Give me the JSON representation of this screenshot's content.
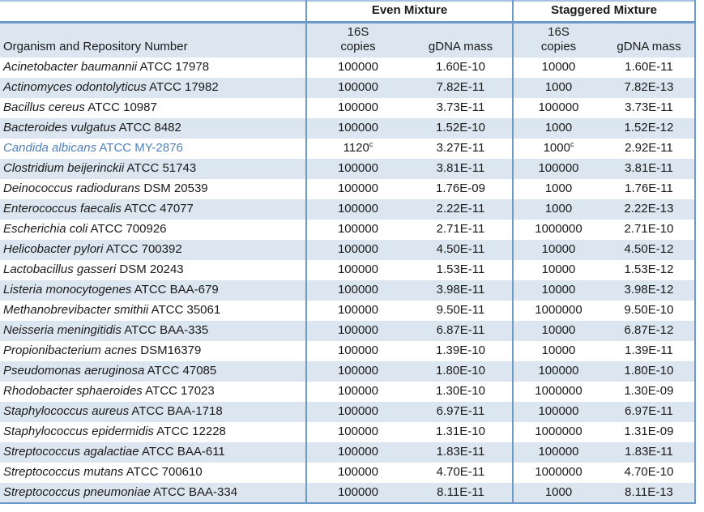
{
  "colors": {
    "band": "#dce6f1",
    "border_strong": "#6d9ac9",
    "border_light": "#a6c3e1",
    "highlight_text": "#4f81bd"
  },
  "table": {
    "group_headers": {
      "even": "Even Mixture",
      "staggered": "Staggered Mixture"
    },
    "sub_headers": {
      "organism": "Organism and Repository Number",
      "copies_line1": "16S",
      "copies_line2": "copies",
      "gdna": "gDNA mass"
    },
    "rows": [
      {
        "species": "Acinetobacter baumannii",
        "strain": "ATCC 17978",
        "even_copies": "100000",
        "even_sup": "",
        "even_gdna": "1.60E-10",
        "stag_copies": "10000",
        "stag_sup": "",
        "stag_gdna": "1.60E-11",
        "highlight": false
      },
      {
        "species": "Actinomyces odontolyticus",
        "strain": "ATCC 17982",
        "even_copies": "100000",
        "even_sup": "",
        "even_gdna": "7.82E-11",
        "stag_copies": "1000",
        "stag_sup": "",
        "stag_gdna": "7.82E-13",
        "highlight": false
      },
      {
        "species": "Bacillus cereus",
        "strain": "ATCC 10987",
        "even_copies": "100000",
        "even_sup": "",
        "even_gdna": "3.73E-11",
        "stag_copies": "100000",
        "stag_sup": "",
        "stag_gdna": "3.73E-11",
        "highlight": false
      },
      {
        "species": "Bacteroides vulgatus",
        "strain": "ATCC 8482",
        "even_copies": "100000",
        "even_sup": "",
        "even_gdna": "1.52E-10",
        "stag_copies": "1000",
        "stag_sup": "",
        "stag_gdna": "1.52E-12",
        "highlight": false
      },
      {
        "species": "Candida albicans",
        "strain": "ATCC MY-2876",
        "even_copies": "1120",
        "even_sup": "c",
        "even_gdna": "3.27E-11",
        "stag_copies": "1000",
        "stag_sup": "c",
        "stag_gdna": "2.92E-11",
        "highlight": true
      },
      {
        "species": "Clostridium beijerinckii",
        "strain": "ATCC 51743",
        "even_copies": "100000",
        "even_sup": "",
        "even_gdna": "3.81E-11",
        "stag_copies": "100000",
        "stag_sup": "",
        "stag_gdna": "3.81E-11",
        "highlight": false
      },
      {
        "species": "Deinococcus radiodurans",
        "strain": "DSM 20539",
        "even_copies": "100000",
        "even_sup": "",
        "even_gdna": "1.76E-09",
        "stag_copies": "1000",
        "stag_sup": "",
        "stag_gdna": "1.76E-11",
        "highlight": false
      },
      {
        "species": "Enterococcus faecalis",
        "strain": "ATCC 47077",
        "even_copies": "100000",
        "even_sup": "",
        "even_gdna": "2.22E-11",
        "stag_copies": "1000",
        "stag_sup": "",
        "stag_gdna": "2.22E-13",
        "highlight": false
      },
      {
        "species": "Escherichia coli",
        "strain": "ATCC 700926",
        "even_copies": "100000",
        "even_sup": "",
        "even_gdna": "2.71E-11",
        "stag_copies": "1000000",
        "stag_sup": "",
        "stag_gdna": "2.71E-10",
        "highlight": false
      },
      {
        "species": "Helicobacter pylori",
        "strain": "ATCC 700392",
        "even_copies": "100000",
        "even_sup": "",
        "even_gdna": "4.50E-11",
        "stag_copies": "10000",
        "stag_sup": "",
        "stag_gdna": "4.50E-12",
        "highlight": false
      },
      {
        "species": "Lactobacillus gasseri",
        "strain": "DSM 20243",
        "even_copies": "100000",
        "even_sup": "",
        "even_gdna": "1.53E-11",
        "stag_copies": "10000",
        "stag_sup": "",
        "stag_gdna": "1.53E-12",
        "highlight": false
      },
      {
        "species": "Listeria monocytogenes",
        "strain": "ATCC BAA-679",
        "even_copies": "100000",
        "even_sup": "",
        "even_gdna": "3.98E-11",
        "stag_copies": "10000",
        "stag_sup": "",
        "stag_gdna": "3.98E-12",
        "highlight": false
      },
      {
        "species": "Methanobrevibacter smithii",
        "strain": "ATCC 35061",
        "even_copies": "100000",
        "even_sup": "",
        "even_gdna": "9.50E-11",
        "stag_copies": "1000000",
        "stag_sup": "",
        "stag_gdna": "9.50E-10",
        "highlight": false
      },
      {
        "species": "Neisseria meningitidis",
        "strain": "ATCC BAA-335",
        "even_copies": "100000",
        "even_sup": "",
        "even_gdna": "6.87E-11",
        "stag_copies": "10000",
        "stag_sup": "",
        "stag_gdna": "6.87E-12",
        "highlight": false
      },
      {
        "species": "Propionibacterium acnes",
        "strain": "DSM16379",
        "even_copies": "100000",
        "even_sup": "",
        "even_gdna": "1.39E-10",
        "stag_copies": "10000",
        "stag_sup": "",
        "stag_gdna": "1.39E-11",
        "highlight": false
      },
      {
        "species": "Pseudomonas aeruginosa",
        "strain": "ATCC 47085",
        "even_copies": "100000",
        "even_sup": "",
        "even_gdna": "1.80E-10",
        "stag_copies": "100000",
        "stag_sup": "",
        "stag_gdna": "1.80E-10",
        "highlight": false
      },
      {
        "species": "Rhodobacter sphaeroides",
        "strain": "ATCC 17023",
        "even_copies": "100000",
        "even_sup": "",
        "even_gdna": "1.30E-10",
        "stag_copies": "1000000",
        "stag_sup": "",
        "stag_gdna": "1.30E-09",
        "highlight": false
      },
      {
        "species": "Staphylococcus aureus",
        "strain": "ATCC BAA-1718",
        "even_copies": "100000",
        "even_sup": "",
        "even_gdna": "6.97E-11",
        "stag_copies": "100000",
        "stag_sup": "",
        "stag_gdna": "6.97E-11",
        "highlight": false
      },
      {
        "species": "Staphylococcus epidermidis",
        "strain": "ATCC 12228",
        "even_copies": "100000",
        "even_sup": "",
        "even_gdna": "1.31E-10",
        "stag_copies": "1000000",
        "stag_sup": "",
        "stag_gdna": "1.31E-09",
        "highlight": false
      },
      {
        "species": "Streptococcus agalactiae",
        "strain": "ATCC BAA-611",
        "even_copies": "100000",
        "even_sup": "",
        "even_gdna": "1.83E-11",
        "stag_copies": "100000",
        "stag_sup": "",
        "stag_gdna": "1.83E-11",
        "highlight": false
      },
      {
        "species": "Streptococcus mutans",
        "strain": "ATCC 700610",
        "even_copies": "100000",
        "even_sup": "",
        "even_gdna": "4.70E-11",
        "stag_copies": "1000000",
        "stag_sup": "",
        "stag_gdna": "4.70E-10",
        "highlight": false
      },
      {
        "species": "Streptococcus pneumoniae",
        "strain": "ATCC BAA-334",
        "even_copies": "100000",
        "even_sup": "",
        "even_gdna": "8.11E-11",
        "stag_copies": "1000",
        "stag_sup": "",
        "stag_gdna": "8.11E-13",
        "highlight": false
      }
    ]
  }
}
